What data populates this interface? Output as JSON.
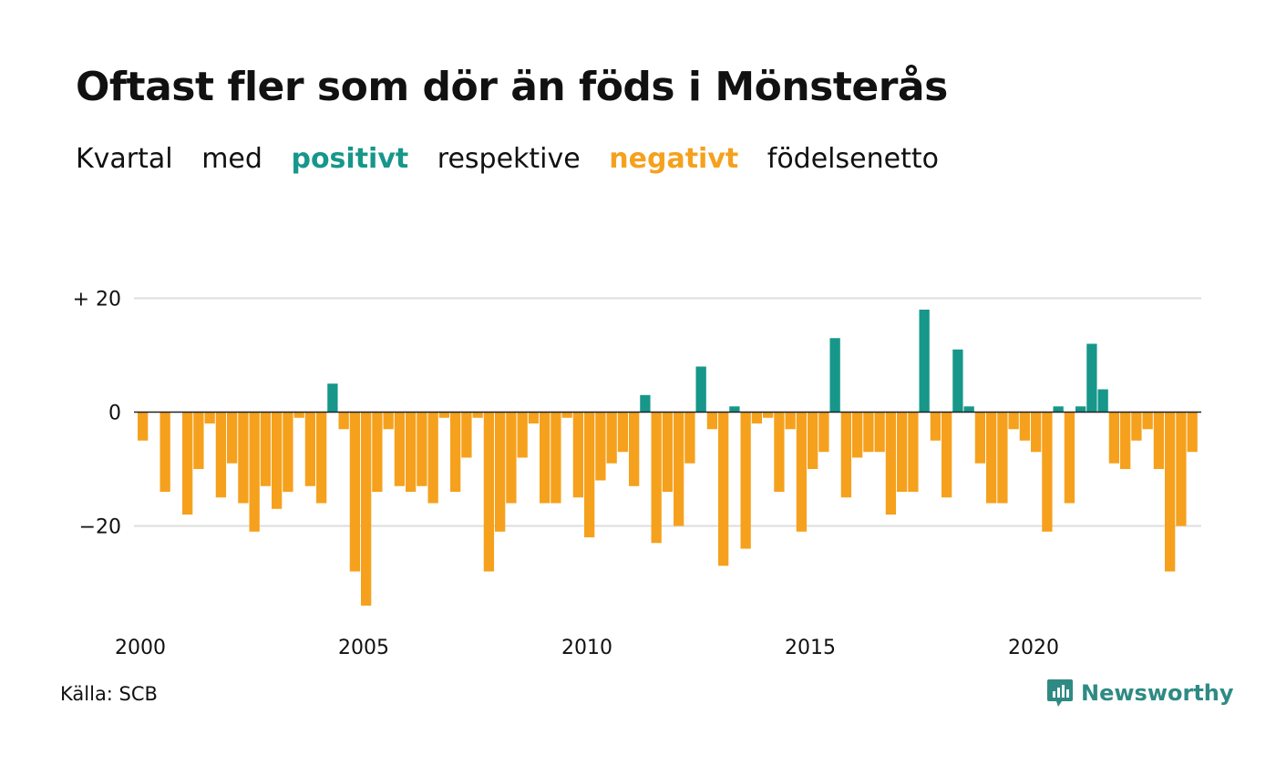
{
  "title": "Oftast fler som dör än föds i Mönsterås",
  "subtitle": {
    "part1": "Kvartal",
    "part2": "med",
    "positive": "positivt",
    "part3": "respektive",
    "negative": "negativt",
    "part4": "födelsenetto"
  },
  "colors": {
    "positive": "#16978a",
    "negative": "#f5a11d",
    "grid": "#dddddd",
    "text": "#111111",
    "logo": "#2f8a84"
  },
  "source": "Källa: SCB",
  "logo": {
    "name": "Newsworthy",
    "icon": "chart-bubble-icon"
  },
  "chart_data": {
    "type": "bar",
    "title": "Oftast fler som dör än föds i Mönsterås",
    "subtitle": "Kvartal med positivt respektive negativt födelsenetto",
    "xlabel": "",
    "ylabel": "",
    "x_start": 2000,
    "periods_per_year": 4,
    "ylim": [
      -35,
      22
    ],
    "yticks": [
      20,
      0,
      -20
    ],
    "ytick_labels": [
      "+ 20",
      "0",
      "−20"
    ],
    "xticks": [
      2000,
      2005,
      2010,
      2015,
      2020
    ],
    "xtick_labels": [
      "2000",
      "2005",
      "2010",
      "2015",
      "2020"
    ],
    "grid": true,
    "values": [
      -5,
      0,
      -14,
      0,
      -18,
      -10,
      -2,
      -15,
      -9,
      -16,
      -21,
      -13,
      -17,
      -14,
      -1,
      -13,
      -16,
      5,
      -3,
      -28,
      -34,
      -14,
      -3,
      -13,
      -14,
      -13,
      -16,
      -1,
      -14,
      -8,
      -1,
      -28,
      -21,
      -16,
      -8,
      -2,
      -16,
      -16,
      -1,
      -15,
      -22,
      -12,
      -9,
      -7,
      -13,
      3,
      -23,
      -14,
      -20,
      -9,
      8,
      -3,
      -27,
      1,
      -24,
      -2,
      -1,
      -14,
      -3,
      -21,
      -10,
      -7,
      13,
      -15,
      -8,
      -7,
      -7,
      -18,
      -14,
      -14,
      18,
      -5,
      -15,
      11,
      1,
      -9,
      -16,
      -16,
      -3,
      -5,
      -7,
      -21,
      1,
      -16,
      1,
      12,
      4,
      -9,
      -10,
      -5,
      -3,
      -10,
      -28,
      -20,
      -7
    ]
  }
}
